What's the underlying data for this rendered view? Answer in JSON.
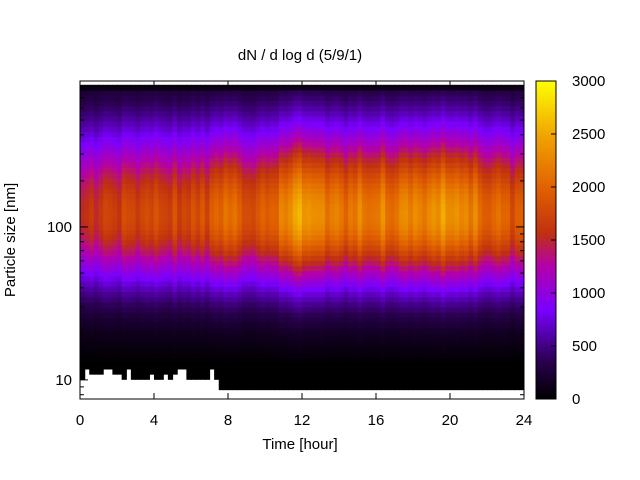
{
  "chart_data": {
    "type": "heatmap",
    "title": "dN / d log d (5/9/1)",
    "xlabel": "Time [hour]",
    "ylabel": "Particle size [nm]",
    "xlim": [
      0,
      24
    ],
    "ylim_nm": [
      7.5,
      900
    ],
    "y_scale": "log",
    "x_ticks": [
      "0",
      "4",
      "8",
      "12",
      "16",
      "20",
      "24"
    ],
    "x_tick_values": [
      0,
      4,
      8,
      12,
      16,
      20,
      24
    ],
    "y_ticks": [
      "10",
      "100"
    ],
    "y_tick_values": [
      10,
      100
    ],
    "colorbar": {
      "ticks": [
        "0",
        "500",
        "1000",
        "1500",
        "2000",
        "2500",
        "3000"
      ],
      "tick_values": [
        0,
        500,
        1000,
        1500,
        2000,
        2500,
        3000
      ],
      "range": [
        0,
        3000
      ],
      "palette": "black-purple-red-orange-yellow"
    },
    "grid": false,
    "legend": "none",
    "data_extent_nm": [
      8,
      850
    ],
    "estimated_profile": {
      "peak_size_nm": 120,
      "hours": [
        0,
        2,
        4,
        6,
        7.5,
        8,
        9,
        10,
        12,
        14,
        16,
        18,
        20,
        22,
        24
      ],
      "peak_value": [
        1500,
        1700,
        1750,
        1800,
        1900,
        2300,
        1700,
        1900,
        2450,
        2150,
        2250,
        2150,
        2450,
        2050,
        1850
      ]
    }
  }
}
